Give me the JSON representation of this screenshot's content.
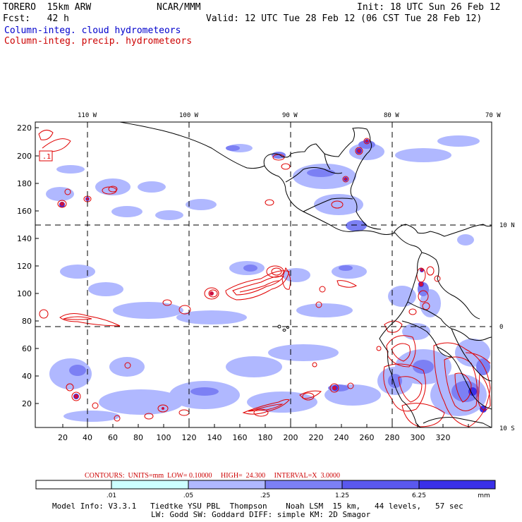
{
  "header": {
    "model": "TORERO  15km ARW",
    "center": "NCAR/MMM",
    "init": "Init: 18 UTC Sun 26 Feb 12",
    "fcst": "Fcst:   42 h",
    "valid": "Valid: 12 UTC Tue 28 Feb 12 (06 CST Tue 28 Feb 12)",
    "field1": "Column-integ. cloud hydrometeors",
    "field2": "Column-integ. precip. hydrometeors"
  },
  "map": {
    "top_lon_labels": [
      "110 W",
      "100 W",
      "90 W",
      "80 W",
      "70 W"
    ],
    "right_lat_labels": [
      "10 N",
      "0",
      "10 S"
    ],
    "y_ticks": [
      "220",
      "200",
      "180",
      "160",
      "140",
      "120",
      "100",
      "80",
      "60",
      "40",
      "20"
    ],
    "x_ticks": [
      "20",
      "40",
      "60",
      "80",
      "100",
      "120",
      "140",
      "160",
      "180",
      "200",
      "220",
      "240",
      "260",
      "280",
      "300",
      "320"
    ],
    "corner_label": ".1",
    "colors": {
      "light": "#b0b8ff",
      "mid": "#7c80f4",
      "dark": "#3a30e8",
      "contour": "#e00000",
      "land_line": "#000000"
    }
  },
  "legend": {
    "contours_line": "CONTOURS:  UNITS=mm  LOW= 0.10000     HIGH=  24.300     INTERVAL=X  3.0000",
    "ticks": [
      ".01",
      ".05",
      ".25",
      "1.25",
      "6.25"
    ],
    "unit": "mm",
    "colors": [
      "#ffffff",
      "#ccffff",
      "#b0b8ff",
      "#7c80f4",
      "#5a58ee",
      "#3a30e8"
    ]
  },
  "model_info": {
    "line1": "Model Info: V3.3.1   Tiedtke YSU PBL  Thompson    Noah LSM  15 km,   44 levels,   57 sec",
    "line2": "LW: Godd SW: Goddard DIFF: simple KM: 2D Smagor"
  }
}
